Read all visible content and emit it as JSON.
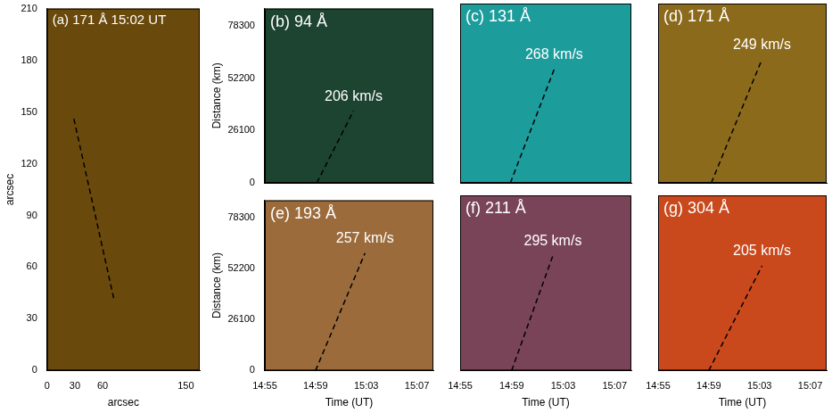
{
  "chart_data": [
    {
      "type": "line",
      "title": "(a) 171 Å 15:02 UT",
      "xlabel": "arcsec",
      "ylabel": "arcsec",
      "xlim": [
        0,
        165
      ],
      "xticks": [
        0,
        30,
        60,
        150
      ],
      "ylim": [
        0,
        210
      ],
      "yticks": [
        0,
        30,
        60,
        90,
        120,
        150,
        180,
        210
      ],
      "grid": false,
      "x": [
        29,
        72
      ],
      "series": [
        {
          "color": "#000000",
          "line_style": "dashed",
          "values": [
            146,
            42
          ]
        }
      ]
    },
    {
      "type": "line",
      "title": "(b) 94 Å",
      "ylabel": "Distance (km)",
      "xlim": [
        895,
        908.3
      ],
      "xticks": [
        {
          "value": 895,
          "label": "14:55"
        },
        {
          "value": 899,
          "label": "14:59"
        },
        {
          "value": 903,
          "label": "15:03"
        },
        {
          "value": 907,
          "label": "15:07"
        }
      ],
      "ylim": [
        0,
        87000
      ],
      "yticks": [
        0,
        26100,
        52200,
        78300
      ],
      "tick_labels": "y",
      "grid": false,
      "annotations": [
        "206 km/s"
      ],
      "x": [
        899.1,
        902.0
      ],
      "series": [
        {
          "color": "#000000",
          "line_style": "dashed",
          "values": [
            0,
            36000
          ]
        }
      ]
    },
    {
      "type": "line",
      "title": "(c) 131 Å",
      "xlim": [
        895,
        908.3
      ],
      "xticks": [
        {
          "value": 895,
          "label": "14:55"
        },
        {
          "value": 899,
          "label": "14:59"
        },
        {
          "value": 903,
          "label": "15:03"
        },
        {
          "value": 907,
          "label": "15:07"
        }
      ],
      "ylim": [
        0,
        87000
      ],
      "yticks": [
        0,
        26100,
        52200,
        78300
      ],
      "tick_labels": false,
      "grid": false,
      "annotations": [
        "268 km/s"
      ],
      "x": [
        898.9,
        902.3
      ],
      "series": [
        {
          "color": "#000000",
          "line_style": "dashed",
          "values": [
            0,
            55000
          ]
        }
      ]
    },
    {
      "type": "line",
      "title": "(d) 171 Å",
      "xlim": [
        895,
        908.3
      ],
      "xticks": [
        {
          "value": 895,
          "label": "14:55"
        },
        {
          "value": 899,
          "label": "14:59"
        },
        {
          "value": 903,
          "label": "15:03"
        },
        {
          "value": 907,
          "label": "15:07"
        }
      ],
      "ylim": [
        0,
        87000
      ],
      "yticks": [
        0,
        26100,
        52200,
        78300
      ],
      "tick_labels": false,
      "grid": false,
      "annotations": [
        "249 km/s"
      ],
      "x": [
        899.2,
        903.2
      ],
      "series": [
        {
          "color": "#000000",
          "line_style": "dashed",
          "values": [
            0,
            60000
          ]
        }
      ]
    },
    {
      "type": "line",
      "title": "(e) 193 Å",
      "xlabel": "Time (UT)",
      "ylabel": "Distance (km)",
      "xlim": [
        895,
        908.3
      ],
      "xticks": [
        {
          "value": 895,
          "label": "14:55"
        },
        {
          "value": 899,
          "label": "14:59"
        },
        {
          "value": 903,
          "label": "15:03"
        },
        {
          "value": 907,
          "label": "15:07"
        }
      ],
      "ylim": [
        0,
        87000
      ],
      "yticks": [
        0,
        26100,
        52200,
        78300
      ],
      "tick_labels": true,
      "grid": false,
      "annotations": [
        "257 km/s"
      ],
      "x": [
        899.0,
        902.9
      ],
      "series": [
        {
          "color": "#000000",
          "line_style": "dashed",
          "values": [
            0,
            60000
          ]
        }
      ]
    },
    {
      "type": "line",
      "title": "(f) 211 Å",
      "xlabel": "Time (UT)",
      "xlim": [
        895,
        908.3
      ],
      "xticks": [
        {
          "value": 895,
          "label": "14:55"
        },
        {
          "value": 899,
          "label": "14:59"
        },
        {
          "value": 903,
          "label": "15:03"
        },
        {
          "value": 907,
          "label": "15:07"
        }
      ],
      "ylim": [
        0,
        87000
      ],
      "yticks": [
        0,
        26100,
        52200,
        78300
      ],
      "tick_labels": "x",
      "grid": false,
      "annotations": [
        "295 km/s"
      ],
      "x": [
        899.0,
        902.2
      ],
      "series": [
        {
          "color": "#000000",
          "line_style": "dashed",
          "values": [
            0,
            57000
          ]
        }
      ]
    },
    {
      "type": "line",
      "title": "(g) 304 Å",
      "xlabel": "Time (UT)",
      "xlim": [
        895,
        908.3
      ],
      "xticks": [
        {
          "value": 895,
          "label": "14:55"
        },
        {
          "value": 899,
          "label": "14:59"
        },
        {
          "value": 903,
          "label": "15:03"
        },
        {
          "value": 907,
          "label": "15:07"
        }
      ],
      "ylim": [
        0,
        87000
      ],
      "yticks": [
        0,
        26100,
        52200,
        78300
      ],
      "tick_labels": "x",
      "grid": false,
      "annotations": [
        "205 km/s"
      ],
      "x": [
        899.0,
        903.2
      ],
      "series": [
        {
          "color": "#000000",
          "line_style": "dashed",
          "values": [
            0,
            52000
          ]
        }
      ]
    }
  ]
}
